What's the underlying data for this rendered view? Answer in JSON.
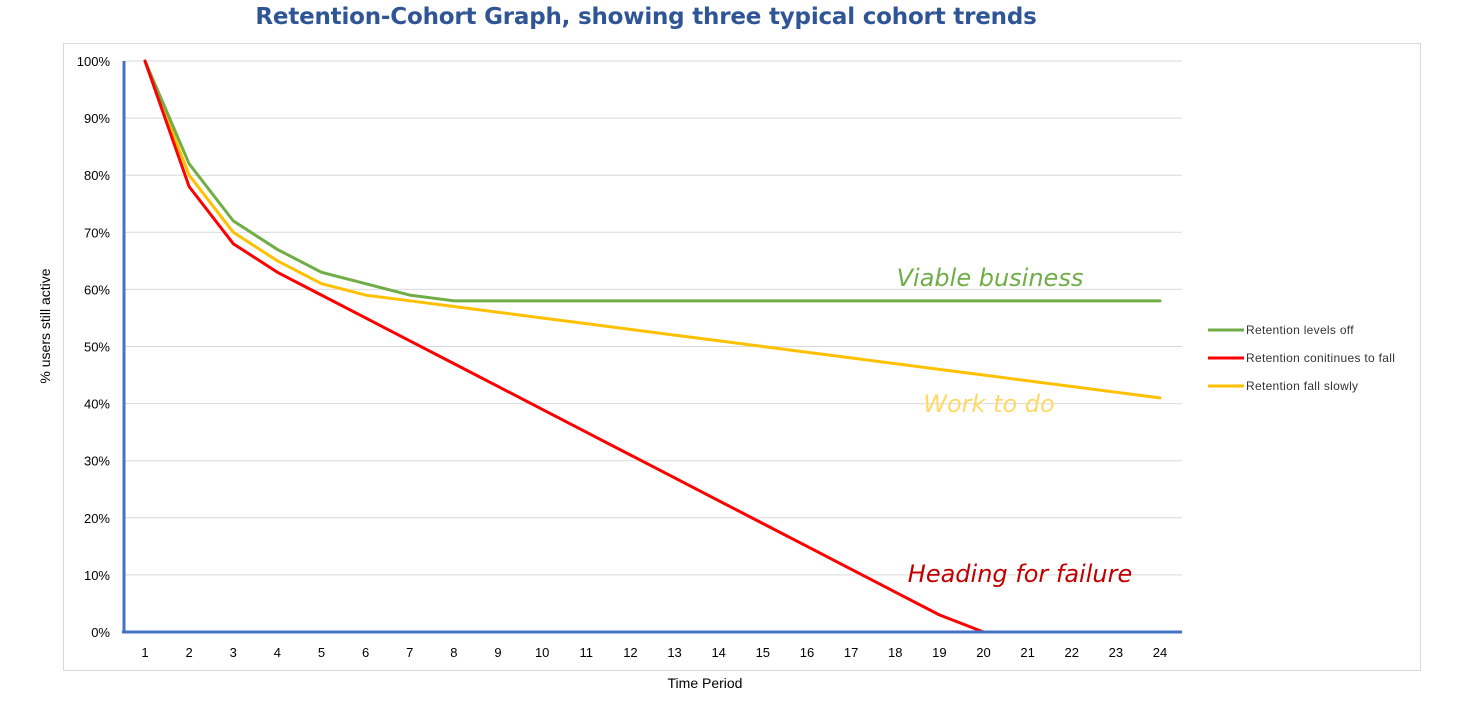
{
  "chart_data": {
    "type": "line",
    "title": "Retention-Cohort Graph, showing three typical cohort trends",
    "xlabel": "Time Period",
    "ylabel": "% users still active",
    "x": [
      1,
      2,
      3,
      4,
      5,
      6,
      7,
      8,
      9,
      10,
      11,
      12,
      13,
      14,
      15,
      16,
      17,
      18,
      19,
      20,
      21,
      22,
      23,
      24
    ],
    "ylim": [
      0,
      100
    ],
    "yticks": [
      "0%",
      "10%",
      "20%",
      "30%",
      "40%",
      "50%",
      "60%",
      "70%",
      "80%",
      "90%",
      "100%"
    ],
    "grid": true,
    "legend_position": "right",
    "series": [
      {
        "name": "Retention levels off",
        "color": "#70ad47",
        "values": [
          100,
          82,
          72,
          67,
          63,
          61,
          59,
          58,
          58,
          58,
          58,
          58,
          58,
          58,
          58,
          58,
          58,
          58,
          58,
          58,
          58,
          58,
          58,
          58
        ]
      },
      {
        "name": "Retention conitinues to fall",
        "color": "#ff0000",
        "values": [
          100,
          78,
          68,
          63,
          59,
          55,
          51,
          47,
          43,
          39,
          35,
          31,
          27,
          23,
          19,
          15,
          11,
          7,
          3,
          0,
          0,
          0,
          0,
          0
        ]
      },
      {
        "name": "Retention fall slowly",
        "color": "#ffc000",
        "values": [
          100,
          80,
          70,
          65,
          61,
          59,
          58,
          57,
          56,
          55,
          54,
          53,
          52,
          51,
          50,
          49,
          48,
          47,
          46,
          45,
          44,
          43,
          42,
          41
        ]
      }
    ],
    "annotations": [
      {
        "text": "Viable business",
        "color": "#70ad47"
      },
      {
        "text": "Work to do",
        "color": "#ffd966"
      },
      {
        "text": "Heading for failure",
        "color": "#c00000"
      }
    ]
  }
}
